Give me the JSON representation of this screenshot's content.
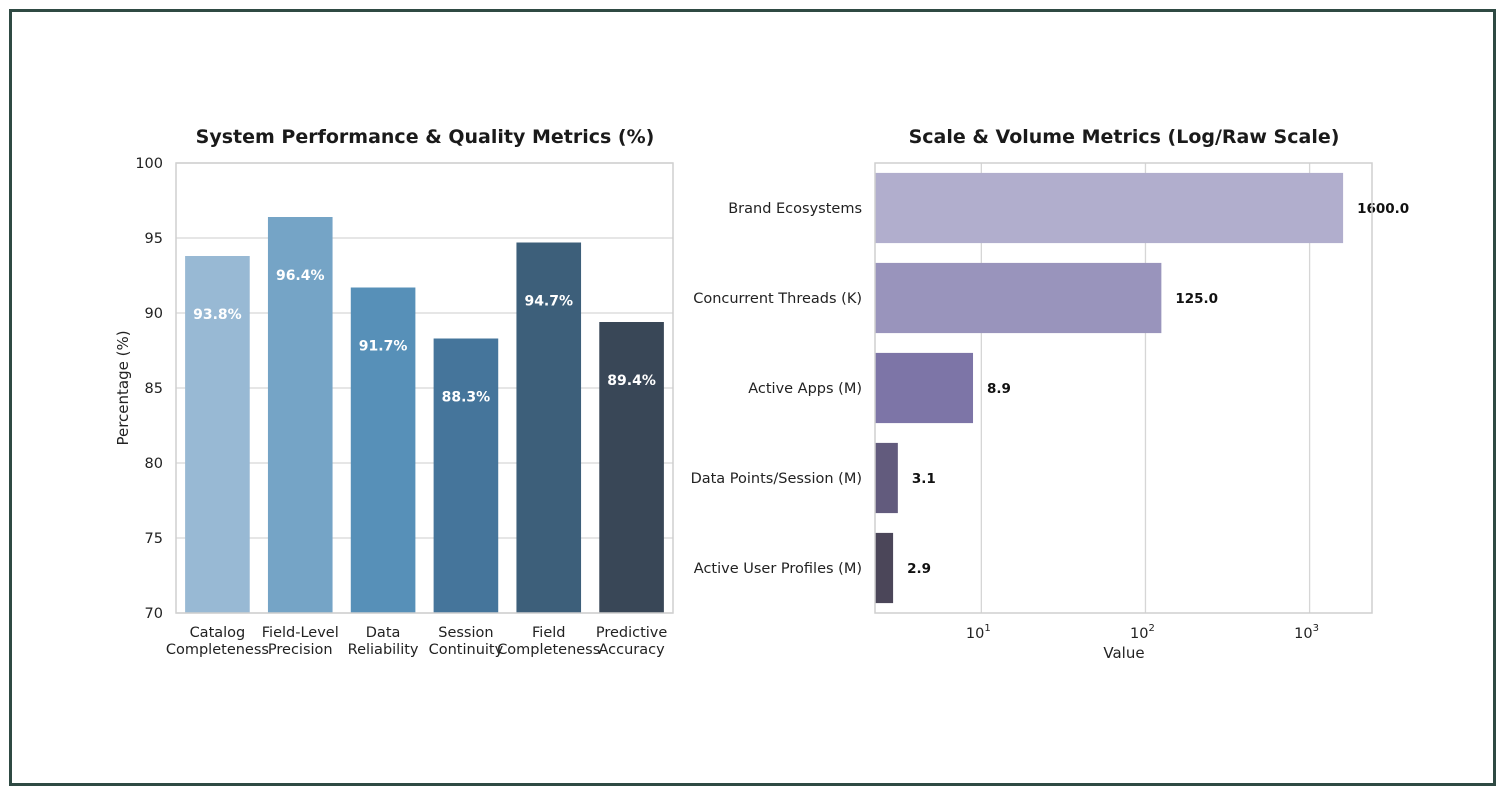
{
  "chart_data": [
    {
      "type": "bar",
      "orientation": "vertical",
      "title": "System Performance & Quality Metrics (%)",
      "ylabel": "Percentage (%)",
      "xlabel": "",
      "ylim": [
        70,
        100
      ],
      "yticks": [
        "70",
        "75",
        "80",
        "85",
        "90",
        "95",
        "100"
      ],
      "grid": true,
      "categories": [
        [
          "Catalog",
          "Completeness"
        ],
        [
          "Field-Level",
          "Precision"
        ],
        [
          "Data",
          "Reliability"
        ],
        [
          "Session",
          "Continuity"
        ],
        [
          "Field",
          "Completeness"
        ],
        [
          "Predictive",
          "Accuracy"
        ]
      ],
      "values": [
        93.8,
        96.4,
        91.7,
        88.3,
        94.7,
        89.4
      ],
      "value_labels": [
        "93.8%",
        "96.4%",
        "91.7%",
        "88.3%",
        "94.7%",
        "89.4%"
      ],
      "colors": [
        "#98b9d4",
        "#75a4c6",
        "#5790b8",
        "#45759b",
        "#3d5f7a",
        "#394757"
      ]
    },
    {
      "type": "bar",
      "orientation": "horizontal",
      "title": "Scale & Volume Metrics (Log/Raw Scale)",
      "xlabel": "Value",
      "ylabel": "",
      "xscale": "log",
      "xlim": [
        2.25,
        2400
      ],
      "xticks": [
        {
          "base": "10",
          "exp": "1"
        },
        {
          "base": "10",
          "exp": "2"
        },
        {
          "base": "10",
          "exp": "3"
        }
      ],
      "grid": true,
      "categories": [
        "Brand Ecosystems",
        "Concurrent Threads (K)",
        "Active Apps (M)",
        "Data Points/Session (M)",
        "Active User Profiles (M)"
      ],
      "values": [
        1600.0,
        125.0,
        8.9,
        3.1,
        2.9
      ],
      "value_labels": [
        "1600.0",
        "125.0",
        "8.9",
        "3.1",
        "2.9"
      ],
      "colors": [
        "#b1aecd",
        "#9994bc",
        "#7d75a7",
        "#625b7d",
        "#4b4659"
      ]
    }
  ]
}
